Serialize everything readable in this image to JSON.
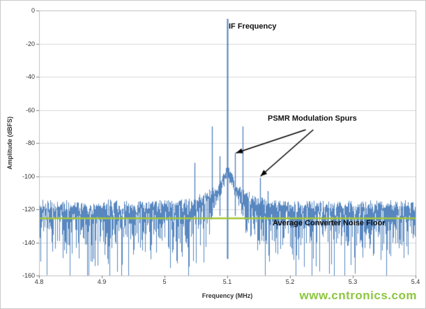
{
  "watermark": {
    "text": "www.cntronics.com",
    "color": "#8DC63F"
  },
  "chart_data": {
    "type": "line",
    "subtype": "frequency-spectrum",
    "title": "",
    "xlabel": "Frequency (MHz)",
    "ylabel": "Amplitude (dBFS)",
    "xlim": [
      4.8,
      5.4
    ],
    "ylim": [
      -160,
      0
    ],
    "xticks": [
      "4.8",
      "4.9",
      "5",
      "5.1",
      "5.2",
      "5.3",
      "5.4"
    ],
    "yticks": [
      "0",
      "-20",
      "-40",
      "-60",
      "-80",
      "-100",
      "-120",
      "-140",
      "-160"
    ],
    "grid": "horizontal-only",
    "legend": "none",
    "series_color": "#4F81BD",
    "carrier": {
      "label": "IF Frequency",
      "freq": 5.1,
      "amplitude_dbfs": -5
    },
    "spurs": [
      {
        "freq": 5.048,
        "amplitude_dbfs": -92
      },
      {
        "freq": 5.075,
        "amplitude_dbfs": -70
      },
      {
        "freq": 5.088,
        "amplitude_dbfs": -88
      },
      {
        "freq": 5.112,
        "amplitude_dbfs": -86
      },
      {
        "freq": 5.125,
        "amplitude_dbfs": -70
      },
      {
        "freq": 5.152,
        "amplitude_dbfs": -101
      },
      {
        "freq": 5.165,
        "amplitude_dbfs": -109
      }
    ],
    "noise_floor": {
      "label": "Average Converter Noise Floor",
      "line_value_dbfs": -125.5,
      "line_color": "#A3C53A",
      "band_top_dbfs": -116,
      "band_spread_db": 9,
      "band_min_dbfs": -160,
      "hump_db": 10,
      "hump_width_mhz": 0.045,
      "seed": 77
    },
    "skirt": {
      "peak_dbfs": -96,
      "slope_db_per_mhz": 1000,
      "half_width_mhz": 0.028
    },
    "annotations": {
      "spurs_label": "PSMR Modulation Spurs",
      "arrows": [
        {
          "from": [
            5.225,
            -72
          ],
          "to": [
            5.114,
            -86
          ]
        },
        {
          "from": [
            5.237,
            -72
          ],
          "to": [
            5.153,
            -100
          ]
        }
      ]
    }
  }
}
